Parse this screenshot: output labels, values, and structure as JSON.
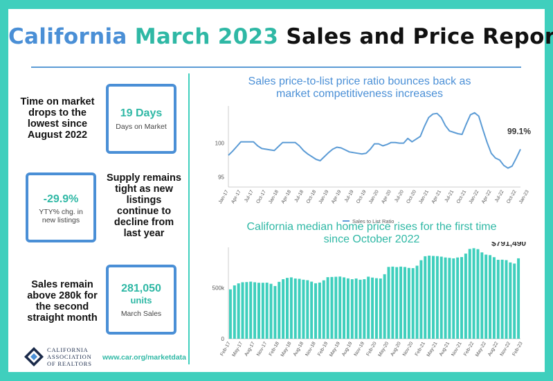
{
  "title": {
    "part1": "California",
    "part2": "March 2023",
    "part3": "Sales and Price Report"
  },
  "stats": {
    "dom": {
      "text": "Time on market drops to the lowest since August 2022",
      "value": "19 Days",
      "label": "Days on Market"
    },
    "listings": {
      "text": "Supply remains tight as new listings continue to decline from last year",
      "value": "-29.9%",
      "label": "YTY% chg. in new listings"
    },
    "sales": {
      "text": "Sales remain above 280k for the second straight month",
      "value": "281,050",
      "unit": "units",
      "label": "March Sales"
    }
  },
  "footer": {
    "org_line1": "CALIFORNIA",
    "org_line2": "ASSOCIATION",
    "org_line3": "OF REALTORS",
    "url": "www.car.org/marketdata"
  },
  "colors": {
    "blue": "#4a8fd6",
    "teal": "#2fb8a5",
    "line": "#5b9bd5",
    "bar": "#3fcfbd"
  },
  "chart_data": [
    {
      "type": "line",
      "title": "Sales price-to-list price ratio bounces back as market competitiveness increases",
      "legend": "Sales to List Ratio",
      "legend_position": "bottom",
      "ylim": [
        93.5,
        105.5
      ],
      "yticks": [
        95,
        100
      ],
      "x_tick_labels": [
        "Jan-17",
        "Apr-17",
        "Jul-17",
        "Oct-17",
        "Jan-18",
        "Apr-18",
        "Jul-18",
        "Oct-18",
        "Jan-19",
        "Apr-19",
        "Jul-19",
        "Oct-19",
        "Jan-20",
        "Apr-20",
        "Jul-20",
        "Oct-20",
        "Jan-21",
        "Apr-21",
        "Jul-21",
        "Oct-21",
        "Jan-22",
        "Apr-22",
        "Jul-22",
        "Oct-22",
        "Jan-23"
      ],
      "end_label": "99.1%",
      "values": [
        98.2,
        98.8,
        99.5,
        100.2,
        100.2,
        100.2,
        100.2,
        99.6,
        99.2,
        99.1,
        99.0,
        98.9,
        99.5,
        100.1,
        100.1,
        100.1,
        100.1,
        99.6,
        98.9,
        98.4,
        98.0,
        97.6,
        97.4,
        98.0,
        98.6,
        99.1,
        99.4,
        99.3,
        99.0,
        98.7,
        98.6,
        98.5,
        98.4,
        98.5,
        99.1,
        99.9,
        99.9,
        99.6,
        99.8,
        100.1,
        100.1,
        100.0,
        100.0,
        100.7,
        100.2,
        100.6,
        101.0,
        102.5,
        103.8,
        104.3,
        104.4,
        103.8,
        102.6,
        101.8,
        101.6,
        101.4,
        101.3,
        102.8,
        104.2,
        104.5,
        104.0,
        102.0,
        100.1,
        98.5,
        97.8,
        97.5,
        96.7,
        96.3,
        96.6,
        97.8,
        99.1
      ]
    },
    {
      "type": "bar",
      "title": "California median home price rises for the first time since October 2022",
      "ylim": [
        0,
        900000
      ],
      "yticks": [
        {
          "value": 0,
          "label": "0"
        },
        {
          "value": 500000,
          "label": "500k"
        }
      ],
      "x_tick_labels": [
        "Feb-17",
        "May-17",
        "Aug-17",
        "Nov-17",
        "Feb-18",
        "May-18",
        "Aug-18",
        "Nov-18",
        "Feb-19",
        "May-19",
        "Aug-19",
        "Nov-19",
        "Feb-20",
        "May-20",
        "Aug-20",
        "Nov-20",
        "Feb-21",
        "May-21",
        "Aug-21",
        "Nov-21",
        "Feb-22",
        "May-22",
        "Aug-22",
        "Nov-22",
        "Feb-23"
      ],
      "end_label": "$791,490",
      "values": [
        486000,
        525000,
        545000,
        556000,
        558000,
        562000,
        556000,
        551000,
        551000,
        552000,
        541000,
        519000,
        560000,
        586000,
        599000,
        604000,
        593000,
        590000,
        581000,
        576000,
        562000,
        546000,
        553000,
        575000,
        606000,
        608000,
        610000,
        612000,
        604000,
        594000,
        586000,
        593000,
        581000,
        586000,
        611000,
        602000,
        596000,
        593000,
        635000,
        707000,
        710000,
        705000,
        710000,
        706000,
        697000,
        695000,
        719000,
        773000,
        812000,
        818000,
        815000,
        813000,
        808000,
        800000,
        796000,
        791000,
        800000,
        804000,
        838000,
        884000,
        891000,
        882000,
        850000,
        828000,
        823000,
        803000,
        777000,
        778000,
        774000,
        751000,
        740000,
        791490
      ]
    }
  ]
}
